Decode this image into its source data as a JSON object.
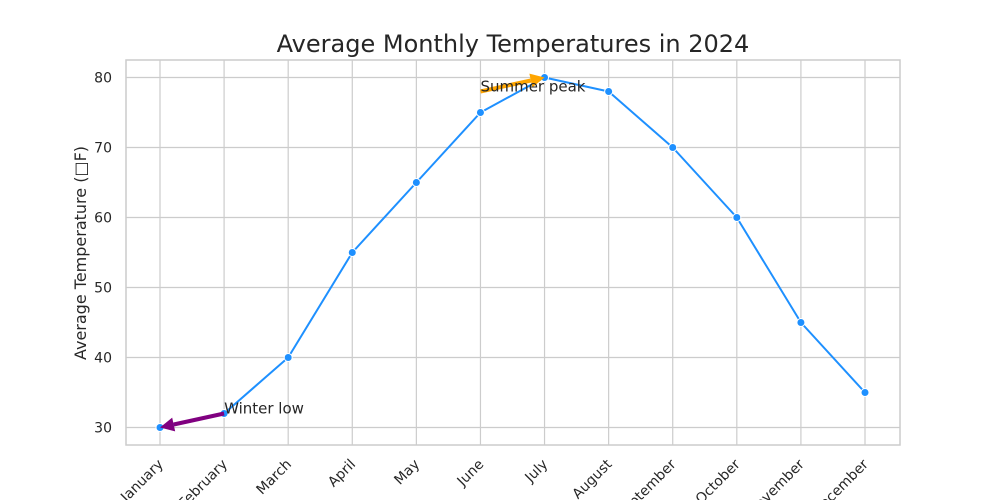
{
  "chart_data": {
    "type": "line",
    "title": "Average Monthly Temperatures in 2024",
    "xlabel": "",
    "ylabel": "Average Temperature (□F)",
    "categories": [
      "January",
      "February",
      "March",
      "April",
      "May",
      "June",
      "July",
      "August",
      "September",
      "October",
      "November",
      "December"
    ],
    "series": [
      {
        "values": [
          30,
          32,
          40,
          55,
          65,
          75,
          80,
          78,
          70,
          60,
          45,
          35
        ],
        "color": "#1E90FF"
      }
    ],
    "ylim": [
      27.5,
      82.5
    ],
    "yticks": [
      30,
      40,
      50,
      60,
      70,
      80
    ],
    "grid": true,
    "annotations": [
      {
        "text": "Winter low",
        "target_category": "January",
        "target_value": 30,
        "text_category_offset": 1,
        "text_value": 32,
        "arrow_color": "#800080"
      },
      {
        "text": "Summer peak",
        "target_category": "July",
        "target_value": 80,
        "text_category_offset": -1,
        "text_value": 78,
        "arrow_color": "#FFA500"
      }
    ]
  }
}
